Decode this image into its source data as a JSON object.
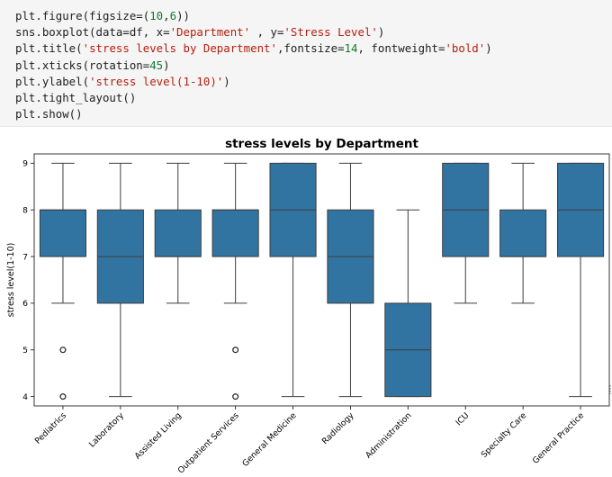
{
  "code_cell": {
    "lines": [
      [
        {
          "t": "plt.figure(figsize=(",
          "k": "plain"
        },
        {
          "t": "10",
          "k": "num"
        },
        {
          "t": ",",
          "k": "plain"
        },
        {
          "t": "6",
          "k": "num"
        },
        {
          "t": "))",
          "k": "plain"
        }
      ],
      [
        {
          "t": "sns.boxplot(data=df, x=",
          "k": "plain"
        },
        {
          "t": "'Department'",
          "k": "str"
        },
        {
          "t": " , y=",
          "k": "plain"
        },
        {
          "t": "'Stress Level'",
          "k": "str"
        },
        {
          "t": ")",
          "k": "plain"
        }
      ],
      [
        {
          "t": "plt.title(",
          "k": "plain"
        },
        {
          "t": "'stress levels by Department'",
          "k": "str"
        },
        {
          "t": ",fontsize=",
          "k": "plain"
        },
        {
          "t": "14",
          "k": "num"
        },
        {
          "t": ", fontweight=",
          "k": "plain"
        },
        {
          "t": "'bold'",
          "k": "str"
        },
        {
          "t": ")",
          "k": "plain"
        }
      ],
      [
        {
          "t": "plt.xticks(rotation=",
          "k": "plain"
        },
        {
          "t": "45",
          "k": "num"
        },
        {
          "t": ")",
          "k": "plain"
        }
      ],
      [
        {
          "t": "plt.ylabel(",
          "k": "plain"
        },
        {
          "t": "'stress level(1-10)'",
          "k": "str"
        },
        {
          "t": ")",
          "k": "plain"
        }
      ],
      [
        {
          "t": "plt.tight_layout()",
          "k": "plain"
        }
      ],
      [
        {
          "t": "plt.show()",
          "k": "plain"
        }
      ]
    ]
  },
  "chart_data": {
    "type": "box",
    "title": "stress levels by Department",
    "xlabel": "",
    "ylabel": "stress level(1-10)",
    "ylim": [
      3.8,
      9.2
    ],
    "yticks": [
      4,
      5,
      6,
      7,
      8,
      9
    ],
    "box_color": "#3274a1",
    "categories": [
      "Pediatrics",
      "Laboratory",
      "Assisted Living",
      "Outpatient Services",
      "General Medicine",
      "Radiology",
      "Administration",
      "ICU",
      "Specialty Care",
      "General Practice"
    ],
    "boxes": [
      {
        "whislo": 6,
        "q1": 7,
        "med": 8,
        "q3": 8,
        "whishi": 9,
        "fliers": [
          5,
          4
        ]
      },
      {
        "whislo": 4,
        "q1": 6,
        "med": 7,
        "q3": 8,
        "whishi": 9,
        "fliers": []
      },
      {
        "whislo": 6,
        "q1": 7,
        "med": 7,
        "q3": 8,
        "whishi": 9,
        "fliers": []
      },
      {
        "whislo": 6,
        "q1": 7,
        "med": 8,
        "q3": 8,
        "whishi": 9,
        "fliers": [
          5,
          4
        ]
      },
      {
        "whislo": 4,
        "q1": 7,
        "med": 8,
        "q3": 9,
        "whishi": 9,
        "fliers": []
      },
      {
        "whislo": 4,
        "q1": 6,
        "med": 7,
        "q3": 8,
        "whishi": 9,
        "fliers": []
      },
      {
        "whislo": 4,
        "q1": 4,
        "med": 5,
        "q3": 6,
        "whishi": 8,
        "fliers": []
      },
      {
        "whislo": 6,
        "q1": 7,
        "med": 8,
        "q3": 9,
        "whishi": 9,
        "fliers": []
      },
      {
        "whislo": 6,
        "q1": 7,
        "med": 7,
        "q3": 8,
        "whishi": 9,
        "fliers": []
      },
      {
        "whislo": 4,
        "q1": 7,
        "med": 8,
        "q3": 9,
        "whishi": 9,
        "fliers": []
      }
    ]
  }
}
